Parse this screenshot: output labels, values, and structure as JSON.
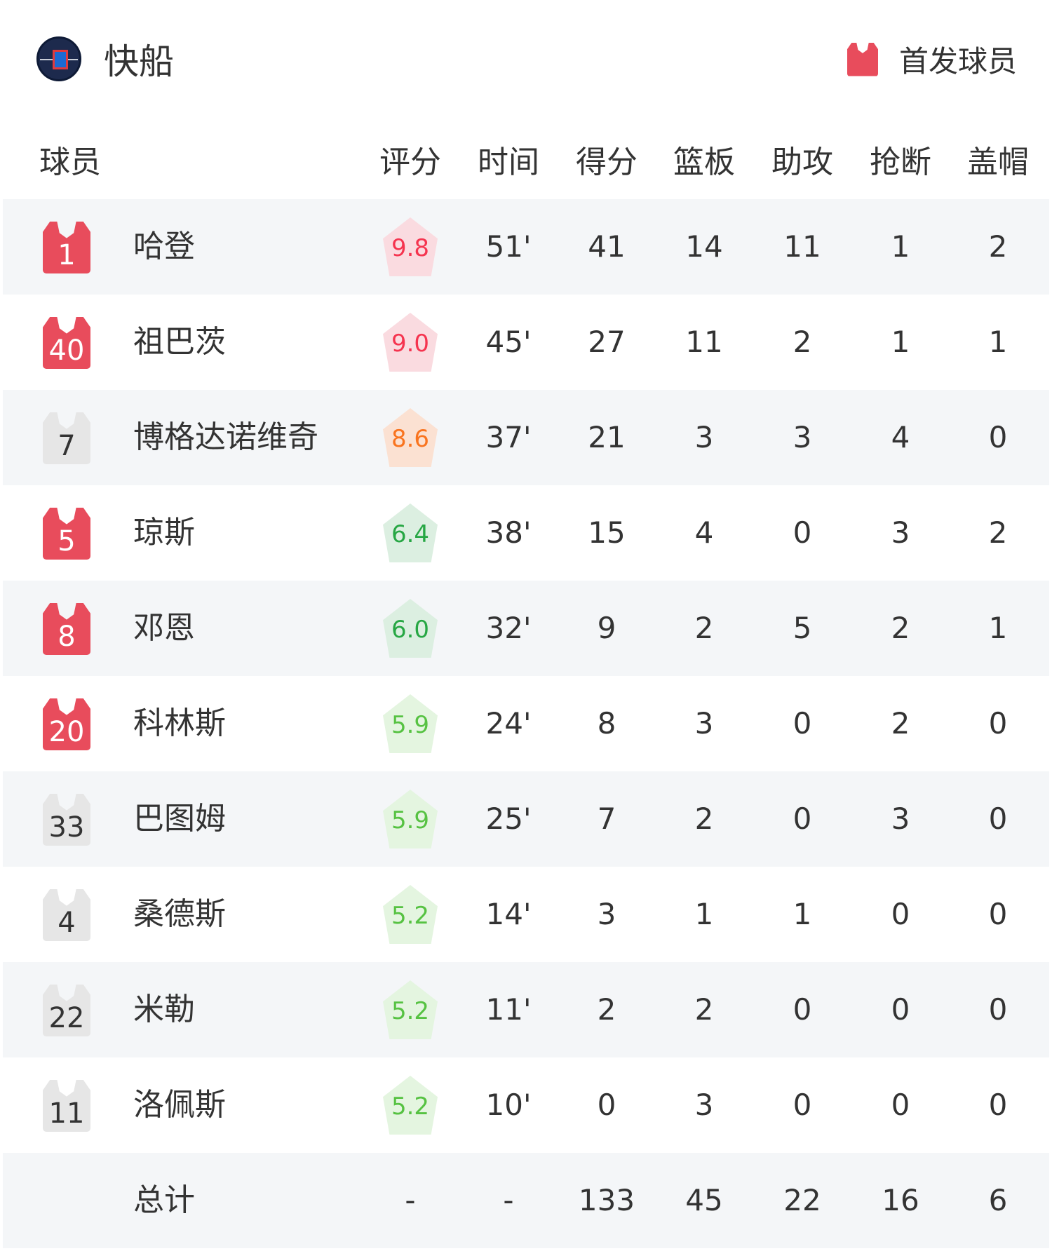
{
  "header": {
    "team_name": "快船",
    "team_logo_icon": "clippers-logo-icon",
    "legend_label": "首发球员",
    "legend_color": "#e84c5c"
  },
  "columns": [
    "球员",
    "评分",
    "时间",
    "得分",
    "篮板",
    "助攻",
    "抢断",
    "盖帽"
  ],
  "colors": {
    "starter_jersey": "#e84c5c",
    "bench_jersey": "#e6e6e6",
    "rating_high_text": "#f5344f",
    "rating_high_bg": "#fadbe0",
    "rating_mid_text": "#f9741f",
    "rating_mid_bg": "#fbe1d2",
    "rating_ok_text": "#27a744",
    "rating_ok_bg": "#dcefe1",
    "rating_low_text": "#56c242",
    "rating_low_bg": "#e4f5e0"
  },
  "players": [
    {
      "number": "1",
      "name": "哈登",
      "starter": true,
      "rating": "9.8",
      "tier": "high",
      "time": "51'",
      "pts": "41",
      "reb": "14",
      "ast": "11",
      "stl": "1",
      "blk": "2"
    },
    {
      "number": "40",
      "name": "祖巴茨",
      "starter": true,
      "rating": "9.0",
      "tier": "high",
      "time": "45'",
      "pts": "27",
      "reb": "11",
      "ast": "2",
      "stl": "1",
      "blk": "1"
    },
    {
      "number": "7",
      "name": "博格达诺维奇",
      "starter": false,
      "rating": "8.6",
      "tier": "mid",
      "time": "37'",
      "pts": "21",
      "reb": "3",
      "ast": "3",
      "stl": "4",
      "blk": "0"
    },
    {
      "number": "5",
      "name": "琼斯",
      "starter": true,
      "rating": "6.4",
      "tier": "ok",
      "time": "38'",
      "pts": "15",
      "reb": "4",
      "ast": "0",
      "stl": "3",
      "blk": "2"
    },
    {
      "number": "8",
      "name": "邓恩",
      "starter": true,
      "rating": "6.0",
      "tier": "ok",
      "time": "32'",
      "pts": "9",
      "reb": "2",
      "ast": "5",
      "stl": "2",
      "blk": "1"
    },
    {
      "number": "20",
      "name": "科林斯",
      "starter": true,
      "rating": "5.9",
      "tier": "low",
      "time": "24'",
      "pts": "8",
      "reb": "3",
      "ast": "0",
      "stl": "2",
      "blk": "0"
    },
    {
      "number": "33",
      "name": "巴图姆",
      "starter": false,
      "rating": "5.9",
      "tier": "low",
      "time": "25'",
      "pts": "7",
      "reb": "2",
      "ast": "0",
      "stl": "3",
      "blk": "0"
    },
    {
      "number": "4",
      "name": "桑德斯",
      "starter": false,
      "rating": "5.2",
      "tier": "low",
      "time": "14'",
      "pts": "3",
      "reb": "1",
      "ast": "1",
      "stl": "0",
      "blk": "0"
    },
    {
      "number": "22",
      "name": "米勒",
      "starter": false,
      "rating": "5.2",
      "tier": "low",
      "time": "11'",
      "pts": "2",
      "reb": "2",
      "ast": "0",
      "stl": "0",
      "blk": "0"
    },
    {
      "number": "11",
      "name": "洛佩斯",
      "starter": false,
      "rating": "5.2",
      "tier": "low",
      "time": "10'",
      "pts": "0",
      "reb": "3",
      "ast": "0",
      "stl": "0",
      "blk": "0"
    }
  ],
  "total": {
    "label": "总计",
    "rating": "-",
    "time": "-",
    "pts": "133",
    "reb": "45",
    "ast": "22",
    "stl": "16",
    "blk": "6"
  }
}
